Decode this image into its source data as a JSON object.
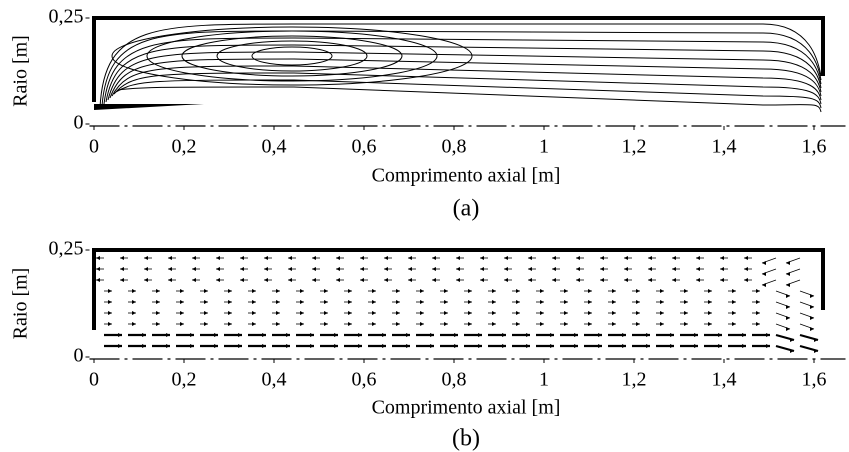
{
  "chart_data": [
    {
      "type": "contour",
      "label": "(a)",
      "xlabel": "Comprimento axial [m]",
      "ylabel": "Raio [m]",
      "xlim": [
        -0.01,
        1.67
      ],
      "ylim": [
        0,
        0.25
      ],
      "xticks": [
        0,
        {
          "value": 0.2,
          "label": "0,2"
        },
        {
          "value": 0.4,
          "label": "0,4"
        },
        {
          "value": 0.6,
          "label": "0,6"
        },
        {
          "value": 0.8,
          "label": "0,8"
        },
        1,
        {
          "value": 1.2,
          "label": "1,2"
        },
        {
          "value": 1.4,
          "label": "1,4"
        },
        {
          "value": 1.6,
          "label": "1,6"
        }
      ],
      "yticks": [
        0,
        {
          "value": 0.25,
          "label": "0,25"
        }
      ]
    },
    {
      "type": "quiver",
      "label": "(b)",
      "xlabel": "Comprimento axial [m]",
      "ylabel": "Raio [m]",
      "xlim": [
        -0.01,
        1.67
      ],
      "ylim": [
        0,
        0.25
      ],
      "xticks": [
        0,
        {
          "value": 0.2,
          "label": "0,2"
        },
        {
          "value": 0.4,
          "label": "0,4"
        },
        {
          "value": 0.6,
          "label": "0,6"
        },
        {
          "value": 0.8,
          "label": "0,8"
        },
        1,
        {
          "value": 1.2,
          "label": "1,2"
        },
        {
          "value": 1.4,
          "label": "1,4"
        },
        {
          "value": 1.6,
          "label": "1,6"
        }
      ],
      "yticks": [
        0,
        {
          "value": 0.25,
          "label": "0,25"
        }
      ]
    }
  ]
}
